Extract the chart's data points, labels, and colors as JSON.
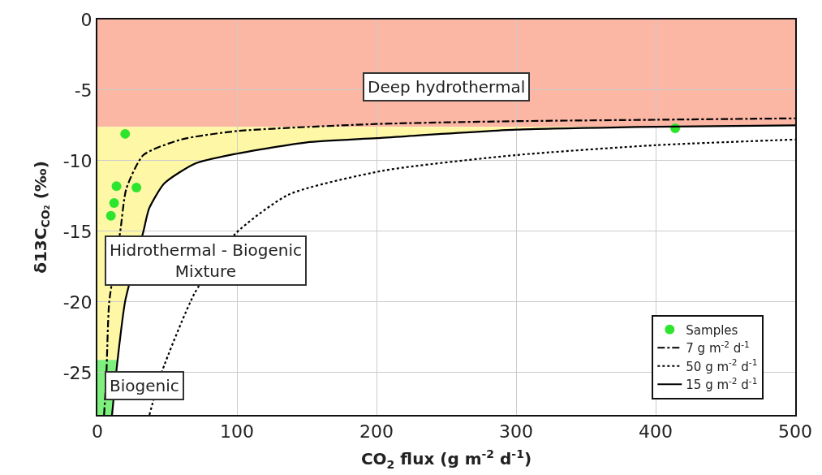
{
  "chart_data": {
    "type": "line",
    "xlabel": "CO$_{2}$ flux (g m$^{-2}$ d$^{-1}$)",
    "ylabel": "δ13C$_{CO₂}$ (‰)",
    "xlim": [
      0,
      500
    ],
    "xticks": [
      0,
      100,
      200,
      300,
      400,
      500
    ],
    "ylim": [
      -28,
      0
    ],
    "yticks": [
      0,
      -5,
      -10,
      -15,
      -20,
      -25
    ],
    "grid": true,
    "legend": "bottom right",
    "series": [
      {
        "name": "Samples",
        "type": "scatter",
        "marker": "circle",
        "color": "#2ee52e",
        "x": [
          19.9,
          13.7,
          28,
          12,
          9.7,
          414
        ],
        "values": [
          -8.1,
          -11.8,
          -11.9,
          -13.0,
          -13.9,
          -7.7
        ]
      },
      {
        "name": "7 g m$^{-2}$ d$^{-1}$",
        "line_style": "dashdot",
        "color": "#000000",
        "x": [
          4.8,
          6.5,
          8.5,
          16.4,
          20.7,
          32.9,
          60,
          100,
          200,
          300,
          400,
          500
        ],
        "values": [
          -28,
          -25,
          -20,
          -15,
          -12,
          -9.6,
          -8.5,
          -7.9,
          -7.4,
          -7.2,
          -7.1,
          -7.0
        ]
      },
      {
        "name": "50 g m$^{-2}$ d$^{-1}$",
        "line_style": "dotted",
        "color": "#000000",
        "x": [
          37.3,
          46,
          69.6,
          98.6,
          137,
          205,
          300,
          400,
          500
        ],
        "values": [
          -28,
          -25,
          -19.4,
          -15.2,
          -12.4,
          -10.7,
          -9.6,
          -8.9,
          -8.5
        ]
      },
      {
        "name": "15 g m$^{-2}$ d$^{-1}$",
        "line_style": "solid",
        "color": "#000000",
        "x": [
          10.5,
          14.5,
          20,
          33,
          37,
          48,
          70,
          100,
          150,
          200,
          300,
          400,
          500
        ],
        "values": [
          -28,
          -24.1,
          -19.9,
          -15,
          -13.4,
          -11.6,
          -10.2,
          -9.5,
          -8.7,
          -8.4,
          -7.8,
          -7.6,
          -7.5
        ]
      }
    ],
    "bands": [
      {
        "axis": "y",
        "from": -7.6,
        "to": 0,
        "label": "Deep hydrothermal",
        "color": "#fbb6a4"
      },
      {
        "axis": "y",
        "from": -24.1,
        "to": -7.6,
        "label": "Hidrothermal - Biogenic Mixture",
        "color": "#fdf7a6"
      },
      {
        "axis": "y",
        "from": -28,
        "to": -24.1,
        "label": "Biogenic",
        "color": "#7ef07e"
      }
    ]
  }
}
